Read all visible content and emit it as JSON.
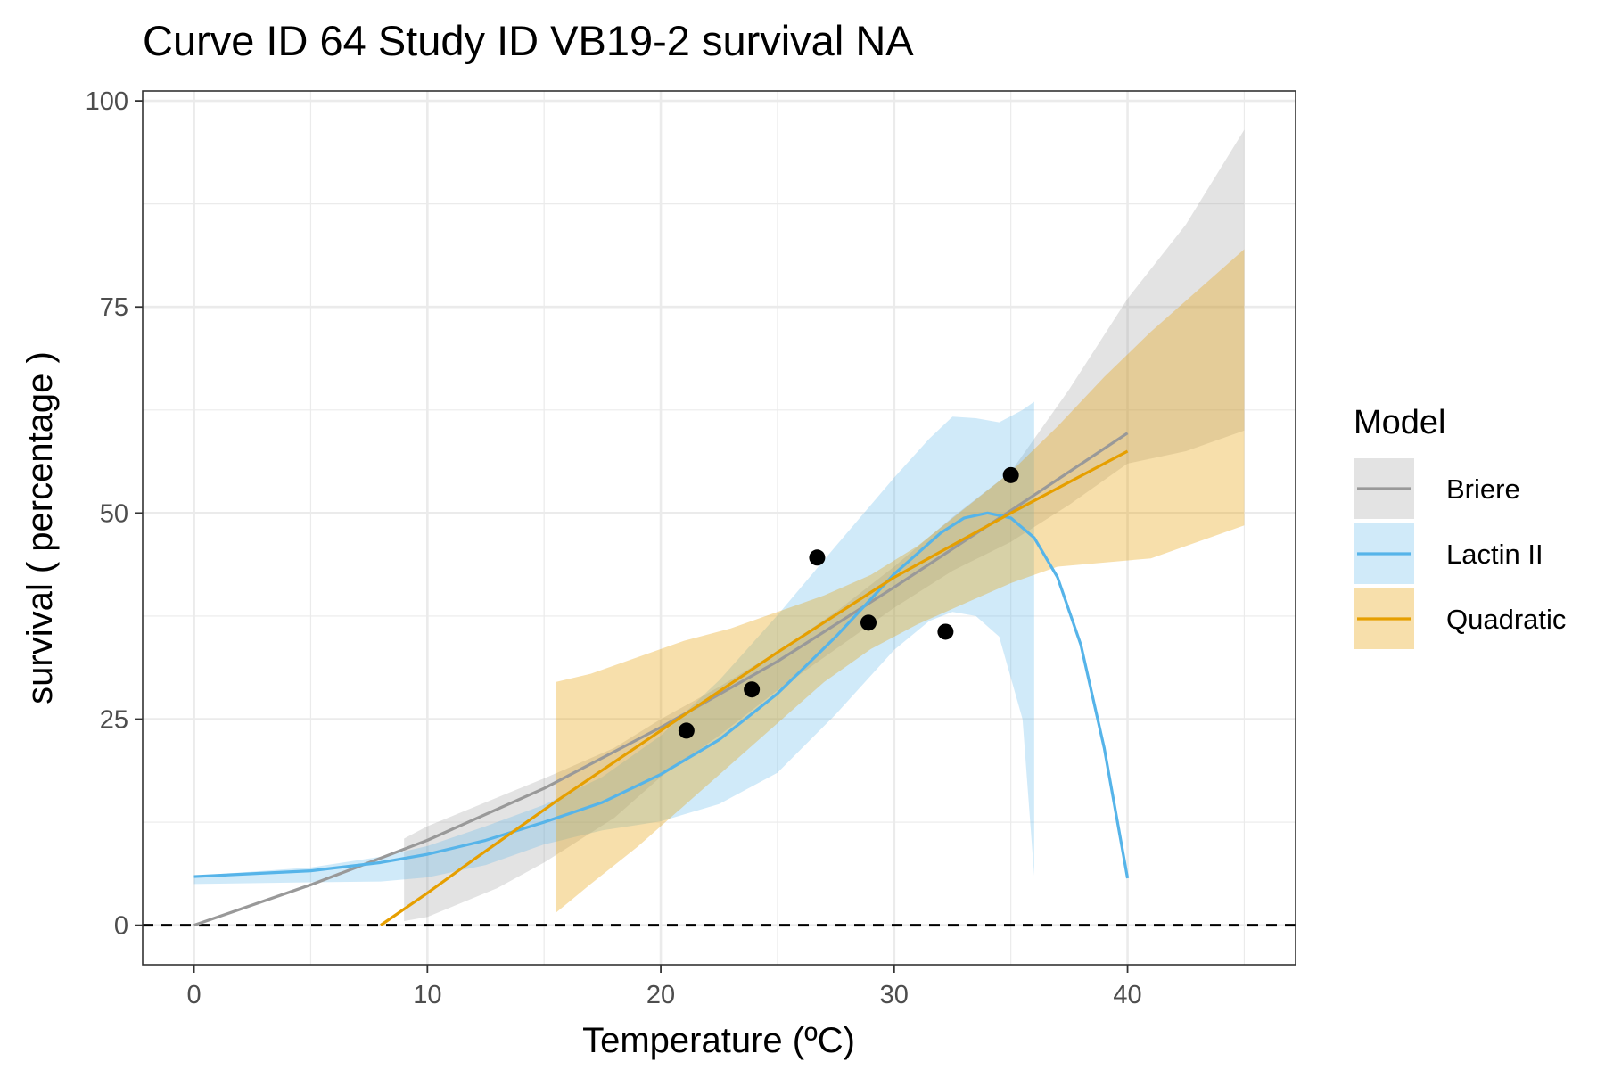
{
  "chart_data": {
    "type": "line",
    "title": "Curve ID 64 Study ID VB19-2 survival NA",
    "xlabel": "Temperature (ºC)",
    "ylabel": "survival ( percentage )",
    "xlim": [
      -2.2,
      47.2
    ],
    "ylim": [
      -4.8,
      101.2
    ],
    "x_ticks": [
      0,
      10,
      20,
      30,
      40
    ],
    "y_ticks": [
      0,
      25,
      50,
      75,
      100
    ],
    "x_tick_labels": [
      "0",
      "10",
      "20",
      "30",
      "40"
    ],
    "y_tick_labels": [
      "0",
      "25",
      "50",
      "75",
      "100"
    ],
    "grid": true,
    "reference_line": {
      "y": 0,
      "style": "dashed"
    },
    "legend": {
      "title": "Model",
      "position": "right",
      "entries": [
        "Briere",
        "Lactin II",
        "Quadratic"
      ]
    },
    "points": [
      {
        "x": 21.1,
        "y": 23.6
      },
      {
        "x": 23.9,
        "y": 28.6
      },
      {
        "x": 26.7,
        "y": 44.6
      },
      {
        "x": 28.9,
        "y": 36.7
      },
      {
        "x": 32.2,
        "y": 35.6
      },
      {
        "x": 35.0,
        "y": 54.6
      }
    ],
    "series": [
      {
        "name": "Briere",
        "color": "#999999",
        "line": [
          [
            0,
            0
          ],
          [
            5,
            4.9
          ],
          [
            10,
            10.3
          ],
          [
            15,
            16.6
          ],
          [
            20,
            24.0
          ],
          [
            25,
            32.0
          ],
          [
            30,
            41.0
          ],
          [
            35,
            50.3
          ],
          [
            40,
            59.7
          ]
        ],
        "band_x": [
          9,
          10,
          13,
          15,
          18,
          20,
          22.5,
          25,
          27.5,
          30,
          32.5,
          35,
          37.5,
          40,
          42.5,
          45
        ],
        "band_upper": [
          10.5,
          12.0,
          15.5,
          17.8,
          21.5,
          25.0,
          28.9,
          33.2,
          38.0,
          43.5,
          49.5,
          55.0,
          65.0,
          76.0,
          85.0,
          96.5
        ],
        "band_lower": [
          0.5,
          1.0,
          4.5,
          7.6,
          13.0,
          18.0,
          23.0,
          28.5,
          33.5,
          38.5,
          43.0,
          46.5,
          51.0,
          56.0,
          57.5,
          60.0
        ]
      },
      {
        "name": "Lactin II",
        "color": "#56b4e9",
        "line": [
          [
            0,
            5.9
          ],
          [
            5,
            6.6
          ],
          [
            8,
            7.6
          ],
          [
            10,
            8.6
          ],
          [
            12.5,
            10.3
          ],
          [
            15,
            12.5
          ],
          [
            17.5,
            14.9
          ],
          [
            20,
            18.3
          ],
          [
            22.5,
            22.5
          ],
          [
            25,
            28.1
          ],
          [
            27.5,
            35.0
          ],
          [
            30,
            42.6
          ],
          [
            32,
            47.6
          ],
          [
            33,
            49.4
          ],
          [
            34,
            50.0
          ],
          [
            35,
            49.4
          ],
          [
            36,
            47.0
          ],
          [
            37,
            42.2
          ],
          [
            38,
            34.0
          ],
          [
            39,
            21.5
          ],
          [
            40,
            5.7
          ]
        ],
        "band_x": [
          0,
          5,
          8,
          10,
          12.5,
          15,
          17.5,
          20,
          22.5,
          25,
          27.5,
          30,
          31.5,
          32.5,
          33.5,
          34.5,
          35.5,
          36
        ],
        "band_upper": [
          6.0,
          7.0,
          8.3,
          9.6,
          12.0,
          14.6,
          18.0,
          23.0,
          29.7,
          37.6,
          46.0,
          54.3,
          59.0,
          61.7,
          61.5,
          61.0,
          62.5,
          63.5
        ],
        "band_lower": [
          5.0,
          5.2,
          5.3,
          5.8,
          7.3,
          9.8,
          11.5,
          12.6,
          14.7,
          18.5,
          25.6,
          33.4,
          36.9,
          38.0,
          37.5,
          35.0,
          25.0,
          6.0
        ]
      },
      {
        "name": "Quadratic",
        "color": "#e69f00",
        "line": [
          [
            8,
            0
          ],
          [
            10,
            3.9
          ],
          [
            12,
            8.0
          ],
          [
            15.5,
            15.0
          ],
          [
            20,
            23.6
          ],
          [
            25,
            33.1
          ],
          [
            30,
            42.2
          ],
          [
            35,
            50.0
          ],
          [
            40,
            57.5
          ]
        ],
        "band_x": [
          15.5,
          17,
          19,
          21,
          23,
          25,
          27,
          29,
          31,
          33,
          35,
          37,
          39,
          41,
          43,
          45
        ],
        "band_upper": [
          29.5,
          30.5,
          32.5,
          34.5,
          36.0,
          38.0,
          40.0,
          42.5,
          46.0,
          50.5,
          55.0,
          60.5,
          66.5,
          72.0,
          77.0,
          82.0
        ],
        "band_lower": [
          1.5,
          5.0,
          9.5,
          14.5,
          19.5,
          24.5,
          29.5,
          33.5,
          36.5,
          39.0,
          41.5,
          43.5,
          44.0,
          44.5,
          46.5,
          48.5
        ]
      }
    ]
  }
}
